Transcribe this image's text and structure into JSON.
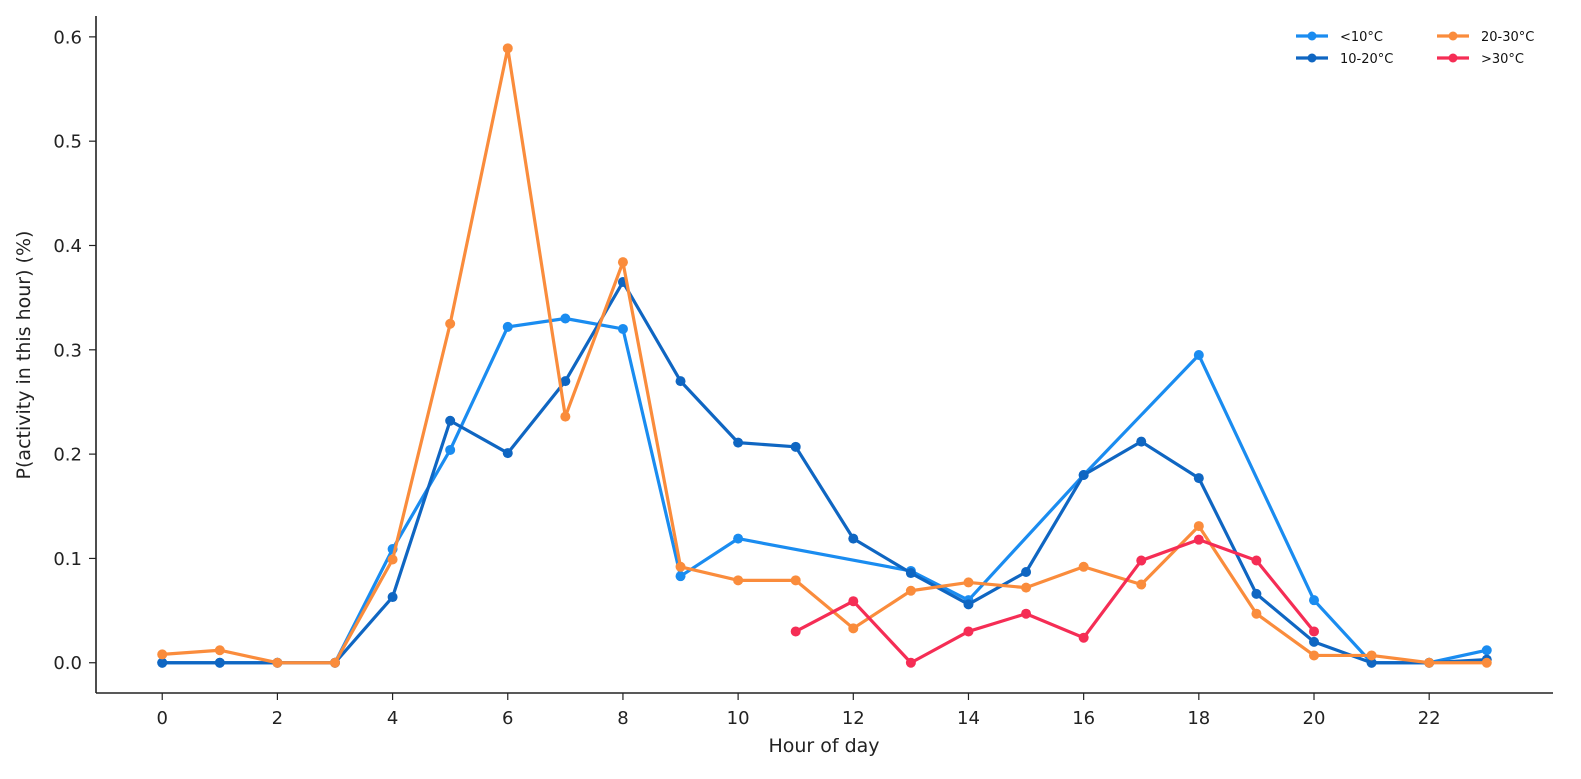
{
  "chart_data": {
    "type": "line",
    "xlabel": "Hour of day",
    "ylabel": "P(activity in this hour) (%)",
    "xlim": [
      -1.15,
      24.15
    ],
    "ylim": [
      -0.029,
      0.62
    ],
    "xticks": [
      0,
      2,
      4,
      6,
      8,
      10,
      12,
      14,
      16,
      18,
      20,
      22
    ],
    "yticks": [
      0.0,
      0.1,
      0.2,
      0.3,
      0.4,
      0.5,
      0.6
    ],
    "ytick_labels": [
      "0.0",
      "0.1",
      "0.2",
      "0.3",
      "0.4",
      "0.5",
      "0.6"
    ],
    "grid": false,
    "legend_position": "top-right",
    "series": [
      {
        "name": "<10°C",
        "color": "#1a8cf0",
        "points": [
          [
            0,
            0
          ],
          [
            1,
            0
          ],
          [
            2,
            0
          ],
          [
            3,
            0
          ],
          [
            4,
            0.109
          ],
          [
            5,
            0.204
          ],
          [
            6,
            0.322
          ],
          [
            7,
            0.33
          ],
          [
            8,
            0.32
          ],
          [
            9,
            0.083
          ],
          [
            10,
            0.119
          ],
          [
            13,
            0.088
          ],
          [
            14,
            0.06
          ],
          [
            16,
            0.18
          ],
          [
            18,
            0.295
          ],
          [
            20,
            0.06
          ],
          [
            21,
            0
          ],
          [
            22,
            0
          ],
          [
            23,
            0.012
          ]
        ]
      },
      {
        "name": "10-20°C",
        "color": "#0f66c2",
        "points": [
          [
            0,
            0
          ],
          [
            1,
            0
          ],
          [
            2,
            0
          ],
          [
            3,
            0
          ],
          [
            4,
            0.063
          ],
          [
            5,
            0.232
          ],
          [
            6,
            0.201
          ],
          [
            7,
            0.27
          ],
          [
            8,
            0.365
          ],
          [
            9,
            0.27
          ],
          [
            10,
            0.211
          ],
          [
            11,
            0.207
          ],
          [
            12,
            0.119
          ],
          [
            13,
            0.086
          ],
          [
            14,
            0.056
          ],
          [
            15,
            0.087
          ],
          [
            16,
            0.18
          ],
          [
            17,
            0.212
          ],
          [
            18,
            0.177
          ],
          [
            19,
            0.066
          ],
          [
            20,
            0.02
          ],
          [
            21,
            0
          ],
          [
            22,
            0
          ],
          [
            23,
            0.003
          ]
        ]
      },
      {
        "name": "20-30°C",
        "color": "#fa8c3c",
        "points": [
          [
            0,
            0.008
          ],
          [
            1,
            0.012
          ],
          [
            2,
            0
          ],
          [
            3,
            0
          ],
          [
            4,
            0.099
          ],
          [
            5,
            0.325
          ],
          [
            6,
            0.589
          ],
          [
            7,
            0.236
          ],
          [
            8,
            0.384
          ],
          [
            9,
            0.092
          ],
          [
            10,
            0.079
          ],
          [
            11,
            0.079
          ],
          [
            12,
            0.033
          ],
          [
            13,
            0.069
          ],
          [
            14,
            0.077
          ],
          [
            15,
            0.072
          ],
          [
            16,
            0.092
          ],
          [
            17,
            0.075
          ],
          [
            18,
            0.131
          ],
          [
            19,
            0.047
          ],
          [
            20,
            0.007
          ],
          [
            21,
            0.007
          ],
          [
            22,
            0
          ],
          [
            23,
            0
          ]
        ]
      },
      {
        "name": ">30°C",
        "color": "#f52d55",
        "points": [
          [
            11,
            0.03
          ],
          [
            12,
            0.059
          ],
          [
            13,
            0
          ],
          [
            14,
            0.03
          ],
          [
            15,
            0.047
          ],
          [
            16,
            0.024
          ],
          [
            17,
            0.098
          ],
          [
            18,
            0.118
          ],
          [
            19,
            0.098
          ],
          [
            20,
            0.03
          ]
        ]
      }
    ]
  }
}
